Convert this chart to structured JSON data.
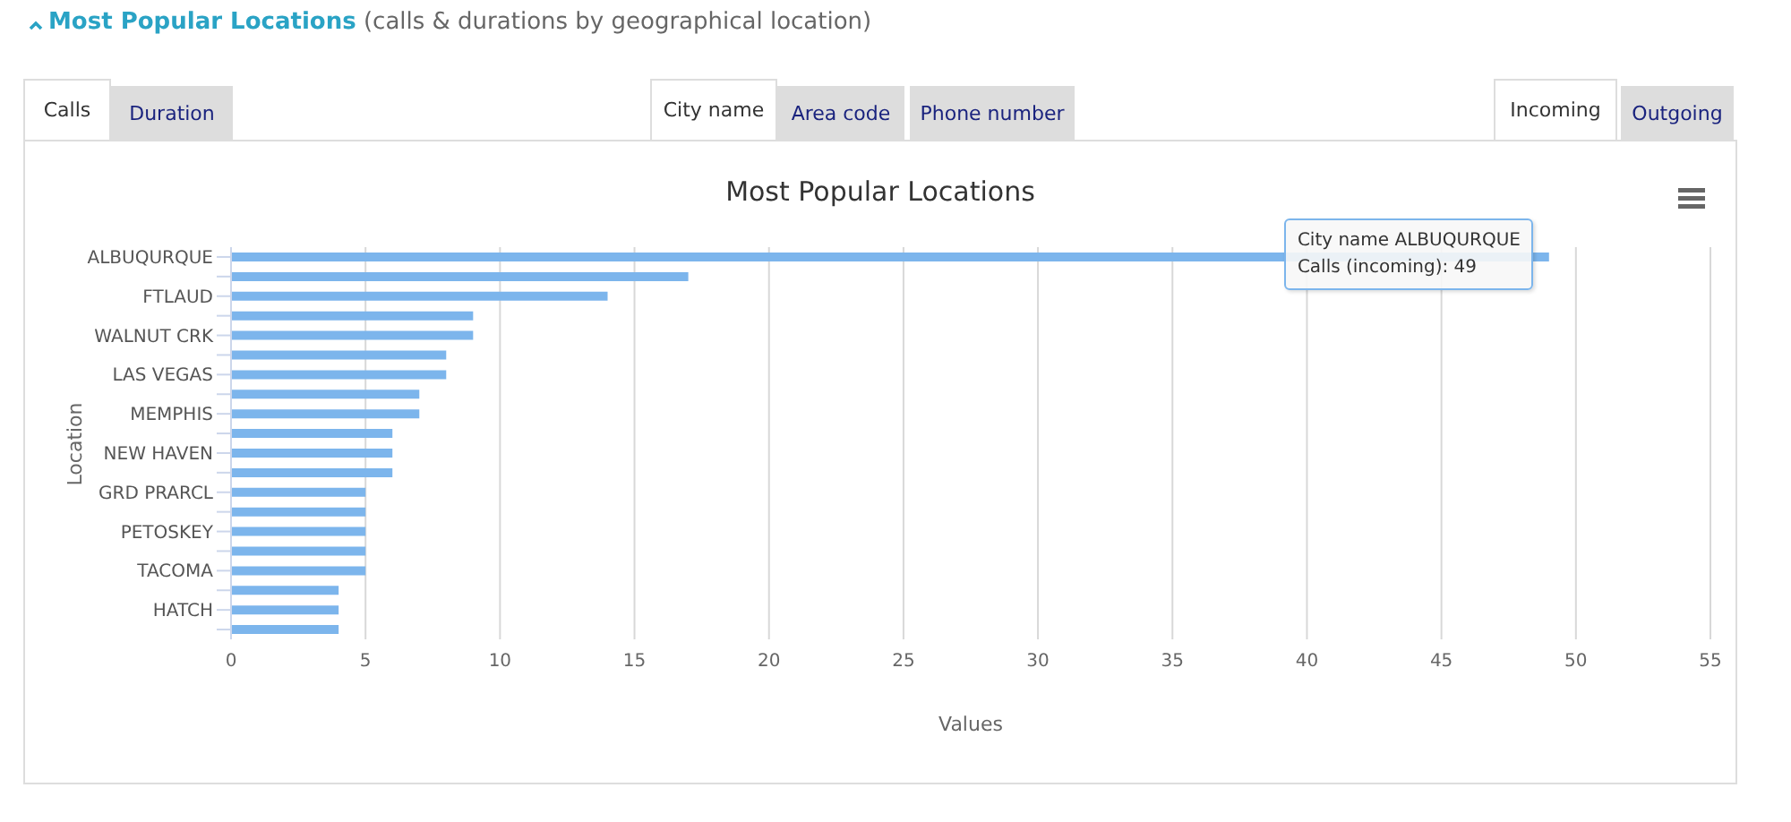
{
  "chart_data": {
    "type": "bar",
    "orientation": "horizontal",
    "title": "Most Popular Locations",
    "xlabel": "Values",
    "ylabel": "Location",
    "categories": [
      "ALBUQURQUE",
      null,
      "FTLAUD",
      null,
      "WALNUT CRK",
      null,
      "LAS VEGAS",
      null,
      "MEMPHIS",
      null,
      "NEW HAVEN",
      null,
      "GRD PRARCL",
      null,
      "PETOSKEY",
      null,
      "TACOMA",
      null,
      "HATCH",
      null
    ],
    "values": [
      49,
      17,
      14,
      9,
      9,
      8,
      8,
      7,
      7,
      6,
      6,
      6,
      5,
      5,
      5,
      5,
      5,
      4,
      4,
      4
    ],
    "color": "#7cb5ec",
    "xlim": [
      0,
      55
    ],
    "xticks": [
      0,
      5,
      10,
      15,
      20,
      25,
      30,
      35,
      40,
      45,
      50,
      55
    ],
    "grid": "x",
    "legend": false,
    "annotations": [
      "Most Popular Locations",
      "(calls & durations by geographical location)",
      "Calls",
      "Duration",
      "City name",
      "Area code",
      "Phone number",
      "Incoming",
      "Outgoing",
      "City name ALBUQURQUE",
      "Calls (incoming): 49"
    ]
  }
}
